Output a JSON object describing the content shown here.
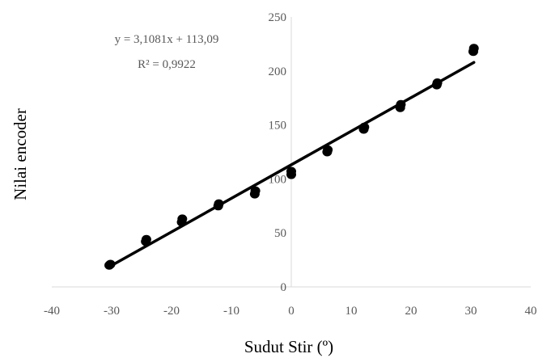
{
  "chart_data": {
    "type": "scatter",
    "title": "",
    "xlabel": "Sudut Stir (º)",
    "ylabel": "Nilai encoder",
    "xlim": [
      -40,
      40
    ],
    "ylim": [
      0,
      250
    ],
    "xticks": [
      -40,
      -30,
      -20,
      -10,
      0,
      10,
      20,
      30,
      40
    ],
    "yticks": [
      0,
      50,
      100,
      150,
      200,
      250
    ],
    "grid": false,
    "legend": "none",
    "series": [
      {
        "type": "scatter",
        "marker_color": "#000000",
        "points": [
          {
            "x": -30.4,
            "y": 20
          },
          {
            "x": -30.2,
            "y": 21
          },
          {
            "x": -24.3,
            "y": 42
          },
          {
            "x": -24.2,
            "y": 44
          },
          {
            "x": -18.3,
            "y": 60
          },
          {
            "x": -18.2,
            "y": 63
          },
          {
            "x": -12.2,
            "y": 75
          },
          {
            "x": -12.1,
            "y": 77
          },
          {
            "x": -6.1,
            "y": 86
          },
          {
            "x": -6.0,
            "y": 89
          },
          {
            "x": 0.0,
            "y": 104
          },
          {
            "x": 0.0,
            "y": 107
          },
          {
            "x": 6.0,
            "y": 125
          },
          {
            "x": 6.1,
            "y": 127
          },
          {
            "x": 12.1,
            "y": 146
          },
          {
            "x": 12.2,
            "y": 148
          },
          {
            "x": 18.2,
            "y": 166
          },
          {
            "x": 18.3,
            "y": 169
          },
          {
            "x": 24.3,
            "y": 187
          },
          {
            "x": 24.4,
            "y": 189
          },
          {
            "x": 30.4,
            "y": 218
          },
          {
            "x": 30.5,
            "y": 221
          }
        ]
      },
      {
        "type": "line",
        "role": "trendline",
        "line_color": "#000000",
        "slope": 3.1081,
        "intercept": 113.09,
        "x_range": [
          -30.4,
          30.5
        ]
      }
    ],
    "annotations": {
      "equation": "y = 3,1081x + 113,09",
      "r_squared": "R² = 0,9922"
    }
  }
}
